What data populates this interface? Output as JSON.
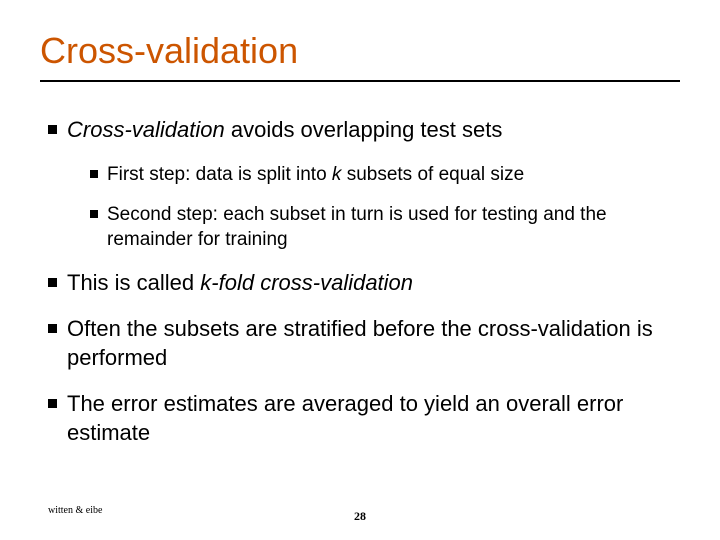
{
  "title": "Cross-validation",
  "bullets": {
    "b1_pre_italic": "Cross-validation",
    "b1_rest": " avoids overlapping test sets",
    "b1a_pre": "First step: data is split into ",
    "b1a_k": "k",
    "b1a_post": " subsets of equal size",
    "b1b": "Second step: each subset in turn is used for testing and the remainder for training",
    "b2_pre": "This is called ",
    "b2_italic": "k-fold cross-validation",
    "b3": "Often the subsets are stratified before the cross-validation is performed",
    "b4": "The error estimates are averaged to yield an overall error estimate"
  },
  "credit": "witten & eibe",
  "page": "28",
  "colors": {
    "title": "#cc5500",
    "text": "#000000",
    "background": "#ffffff"
  },
  "fonts": {
    "title_size": 36,
    "l1_size": 22,
    "l2_size": 19
  }
}
